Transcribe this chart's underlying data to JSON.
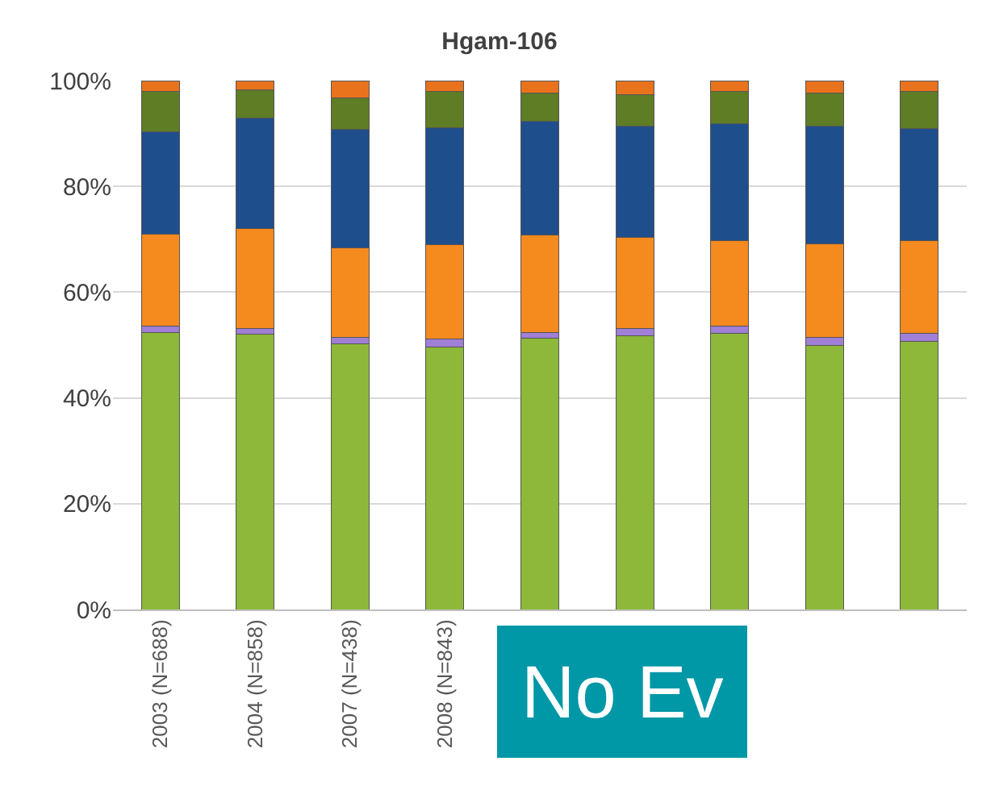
{
  "chart_data": {
    "type": "bar",
    "title": "Hgam-106",
    "stacked": true,
    "categories": [
      "2003 (N=688)",
      "2004 (N=858)",
      "2007 (N=438)",
      "2008 (N=843)",
      null,
      null,
      null,
      null,
      null
    ],
    "series": [
      {
        "color": "#8db83a",
        "values": [
          52.4,
          52.0,
          50.3,
          49.6,
          51.3,
          51.7,
          52.2,
          50.0,
          50.7
        ]
      },
      {
        "color": "#a07fd6",
        "values": [
          1.2,
          1.2,
          1.2,
          1.5,
          1.1,
          1.4,
          1.4,
          1.5,
          1.5
        ]
      },
      {
        "color": "#f58a1f",
        "values": [
          17.4,
          18.8,
          16.9,
          17.9,
          18.4,
          17.2,
          16.1,
          17.7,
          17.5
        ]
      },
      {
        "color": "#1f4e8c",
        "values": [
          19.3,
          20.9,
          22.4,
          22.1,
          21.5,
          21.1,
          22.2,
          22.2,
          21.2
        ]
      },
      {
        "color": "#5e7d25",
        "values": [
          7.6,
          5.3,
          5.9,
          6.8,
          5.3,
          6.0,
          6.0,
          6.2,
          7.0
        ]
      },
      {
        "color": "#e8731c",
        "values": [
          2.1,
          1.8,
          3.3,
          2.1,
          2.4,
          2.6,
          2.1,
          2.4,
          2.1
        ]
      }
    ],
    "ylim": [
      0,
      100
    ],
    "yticks": [
      {
        "value": 0,
        "label": "0%"
      },
      {
        "value": 20,
        "label": "20%"
      },
      {
        "value": 40,
        "label": "40%"
      },
      {
        "value": 60,
        "label": "60%"
      },
      {
        "value": 80,
        "label": "80%"
      },
      {
        "value": 100,
        "label": "100%"
      }
    ],
    "grid": "y",
    "annotations": [
      "No Ev"
    ]
  }
}
